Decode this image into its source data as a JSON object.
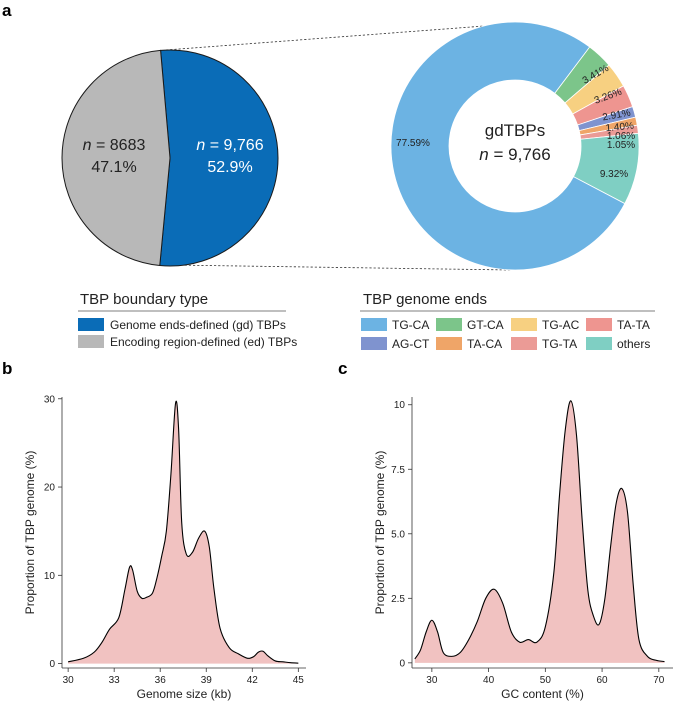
{
  "panels": {
    "a": "a",
    "b": "b",
    "c": "c"
  },
  "colors": {
    "gd": "#0a6cb7",
    "ed": "#b8b8b8",
    "TG-CA": "#6cb3e3",
    "GT-CA": "#7cc58a",
    "TG-AC": "#f7d081",
    "TA-TA": "#ee9590",
    "AG-CT": "#7f93cf",
    "TA-CA": "#efa568",
    "TG-TA": "#eb9b96",
    "others": "#7fcfc3",
    "density_fill": "#f1c2c1",
    "density_line": "#000000"
  },
  "chart_data": [
    {
      "type": "pie",
      "panel": "a",
      "title": "TBP boundary type",
      "slices": [
        {
          "key": "gd",
          "legend": "Genome ends-defined (gd) TBPs",
          "n_prefix": "n",
          "n_text": " = 9,766",
          "value": 52.9,
          "pct_label": "52.9%"
        },
        {
          "key": "ed",
          "legend": "Encoding region-defined (ed) TBPs",
          "n_prefix": "n",
          "n_text": " = 8683",
          "value": 47.1,
          "pct_label": "47.1%"
        }
      ]
    },
    {
      "type": "pie",
      "variant": "donut",
      "panel": "a",
      "title": "TBP genome ends",
      "center_title": "gdTBPs",
      "center_n_prefix": "n",
      "center_n_text": " = 9,766",
      "slices": [
        {
          "key": "TG-CA",
          "value": 77.59,
          "label": "77.59%"
        },
        {
          "key": "GT-CA",
          "value": 3.41,
          "label": "3.41%"
        },
        {
          "key": "TG-AC",
          "value": 3.26,
          "label": "3.26%"
        },
        {
          "key": "TA-TA",
          "value": 2.91,
          "label": "2.91%"
        },
        {
          "key": "AG-CT",
          "value": 1.4,
          "label": "1.40%"
        },
        {
          "key": "TA-CA",
          "value": 1.06,
          "label": "1.06%"
        },
        {
          "key": "TG-TA",
          "value": 1.05,
          "label": "1.05%"
        },
        {
          "key": "others",
          "value": 9.32,
          "label": "9.32%"
        }
      ],
      "legend_order": [
        "TG-CA",
        "GT-CA",
        "TG-AC",
        "TA-TA",
        "AG-CT",
        "TA-CA",
        "TG-TA",
        "others"
      ]
    },
    {
      "type": "area",
      "subtype": "density",
      "panel": "b",
      "xlabel": "Genome size (kb)",
      "ylabel": "Proportion of TBP genome (%)",
      "xlim": [
        29.6,
        45.5
      ],
      "ylim": [
        -0.5,
        30.2
      ],
      "xticks": [
        30,
        33,
        36,
        39,
        42,
        45
      ],
      "yticks": [
        0,
        10,
        20,
        30
      ],
      "ytick_labels": [
        "0",
        "10",
        "20",
        "30"
      ],
      "x": [
        30.0,
        31.0,
        31.7,
        32.2,
        32.7,
        33.3,
        33.7,
        34.0,
        34.2,
        34.5,
        34.8,
        35.1,
        35.5,
        35.8,
        36.1,
        36.4,
        36.7,
        37.0,
        37.2,
        37.4,
        37.7,
        38.1,
        38.5,
        38.9,
        39.2,
        39.5,
        39.9,
        40.5,
        41.1,
        41.7,
        42.1,
        42.4,
        42.7,
        43.0,
        43.5,
        44.0,
        44.5,
        45.0
      ],
      "y": [
        0.2,
        0.6,
        1.3,
        2.4,
        3.9,
        5.2,
        8.4,
        10.9,
        10.6,
        8.2,
        7.4,
        7.5,
        8.0,
        9.8,
        12.2,
        15.0,
        21.5,
        29.5,
        26.5,
        16.0,
        12.4,
        12.6,
        14.2,
        15.0,
        13.2,
        8.5,
        4.0,
        1.8,
        1.1,
        0.6,
        0.8,
        1.3,
        1.4,
        0.9,
        0.3,
        0.2,
        0.1,
        0.05
      ]
    },
    {
      "type": "area",
      "subtype": "density",
      "panel": "c",
      "xlabel": "GC content (%)",
      "ylabel": "Proportion of TBP genome (%)",
      "xlim": [
        26.5,
        72.5
      ],
      "ylim": [
        -0.2,
        10.3
      ],
      "xticks": [
        30,
        40,
        50,
        60,
        70
      ],
      "yticks": [
        0,
        2.5,
        5.0,
        7.5,
        10.0
      ],
      "ytick_labels": [
        "0",
        "2.5",
        "5.0",
        "7.5",
        "10"
      ],
      "x": [
        27.0,
        28.0,
        29.0,
        30.0,
        31.0,
        32.0,
        33.5,
        35.0,
        36.5,
        38.0,
        39.5,
        41.0,
        42.5,
        44.0,
        45.5,
        47.0,
        48.5,
        50.0,
        51.5,
        52.5,
        53.5,
        54.5,
        55.5,
        56.5,
        57.5,
        58.5,
        59.5,
        60.5,
        61.5,
        62.5,
        63.5,
        64.5,
        65.5,
        66.5,
        68.0,
        69.5,
        71.0
      ],
      "y": [
        0.15,
        0.5,
        1.2,
        1.65,
        1.2,
        0.4,
        0.25,
        0.4,
        0.9,
        1.6,
        2.5,
        2.85,
        2.3,
        1.2,
        0.8,
        0.9,
        0.8,
        1.4,
        3.5,
        6.5,
        9.0,
        10.15,
        8.8,
        5.5,
        2.8,
        1.8,
        1.5,
        2.5,
        4.5,
        6.2,
        6.75,
        5.8,
        3.0,
        0.9,
        0.25,
        0.1,
        0.05
      ]
    }
  ]
}
